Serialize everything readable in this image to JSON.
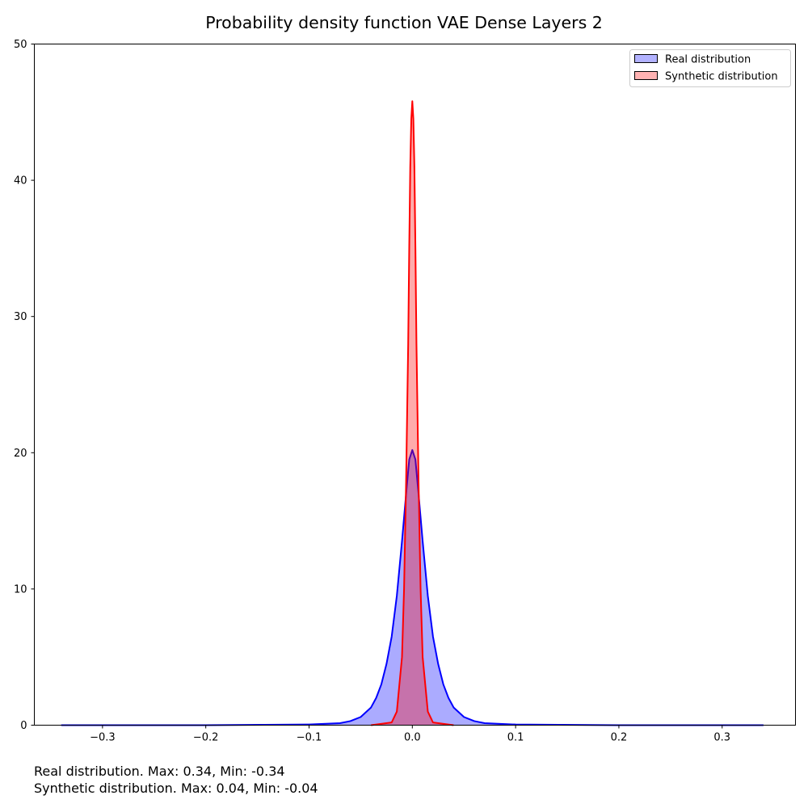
{
  "chart_data": {
    "type": "area",
    "title": "Probability density function VAE Dense Layers 2",
    "xlabel": "",
    "ylabel": "",
    "xlim": [
      -0.366,
      0.371
    ],
    "ylim": [
      0,
      50
    ],
    "x_ticks": [
      -0.3,
      -0.2,
      -0.1,
      0.0,
      0.1,
      0.2,
      0.3
    ],
    "x_tick_labels": [
      "−0.3",
      "−0.2",
      "−0.1",
      "0.0",
      "0.1",
      "0.2",
      "0.3"
    ],
    "y_ticks": [
      0,
      10,
      20,
      30,
      40,
      50
    ],
    "y_tick_labels": [
      "0",
      "10",
      "20",
      "30",
      "40",
      "50"
    ],
    "grid": false,
    "legend_position": "top-right",
    "series": [
      {
        "name": "Real distribution",
        "line_color": "#0000ff",
        "fill_color": "#0000ff",
        "x": [
          -0.34,
          -0.2,
          -0.1,
          -0.07,
          -0.06,
          -0.05,
          -0.04,
          -0.035,
          -0.03,
          -0.025,
          -0.02,
          -0.015,
          -0.01,
          -0.006,
          -0.003,
          0.0,
          0.003,
          0.006,
          0.01,
          0.015,
          0.02,
          0.025,
          0.03,
          0.035,
          0.04,
          0.05,
          0.06,
          0.07,
          0.1,
          0.2,
          0.34
        ],
        "y": [
          0.0,
          0.0,
          0.05,
          0.15,
          0.3,
          0.6,
          1.3,
          2.0,
          3.0,
          4.5,
          6.5,
          9.5,
          13.5,
          17.0,
          19.5,
          20.2,
          19.5,
          17.0,
          13.5,
          9.5,
          6.5,
          4.5,
          3.0,
          2.0,
          1.3,
          0.6,
          0.3,
          0.15,
          0.05,
          0.0,
          0.0
        ]
      },
      {
        "name": "Synthetic distribution",
        "line_color": "#ff0000",
        "fill_color": "#ff0000",
        "x": [
          -0.04,
          -0.02,
          -0.015,
          -0.01,
          -0.008,
          -0.006,
          -0.004,
          -0.003,
          -0.002,
          -0.001,
          0.0,
          0.001,
          0.002,
          0.003,
          0.004,
          0.006,
          0.008,
          0.01,
          0.015,
          0.02,
          0.04
        ],
        "y": [
          0.0,
          0.2,
          1.0,
          5.0,
          10.0,
          18.0,
          28.0,
          35.0,
          41.0,
          44.5,
          45.8,
          44.5,
          41.0,
          35.0,
          28.0,
          18.0,
          10.0,
          5.0,
          1.0,
          0.2,
          0.0
        ]
      }
    ]
  },
  "captions": {
    "real": "Real distribution. Max: 0.34, Min: -0.34",
    "synthetic": "Synthetic distribution. Max: 0.04, Min: -0.04"
  }
}
